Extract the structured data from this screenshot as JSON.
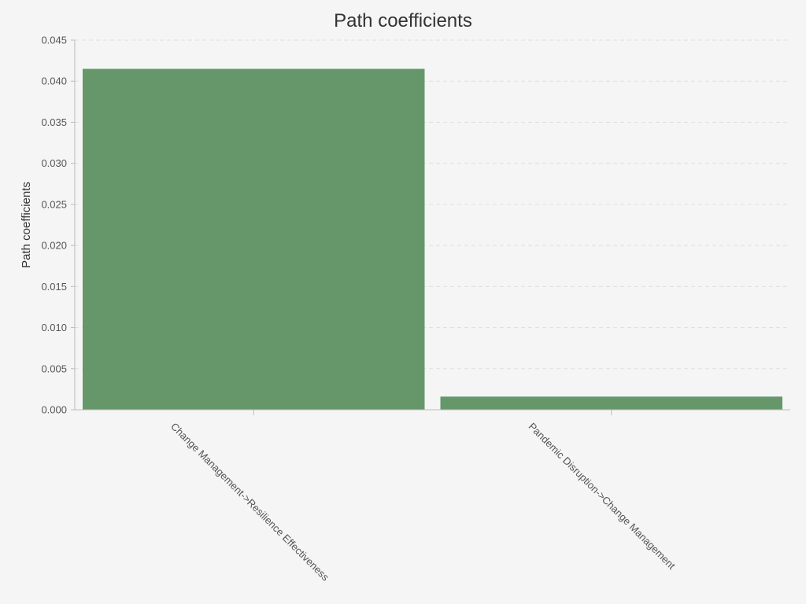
{
  "chart_data": {
    "type": "bar",
    "title": "Path coefficients",
    "xlabel": "",
    "ylabel": "Path coefficients",
    "categories": [
      "Change Management->Resilience Effectiveness",
      "Pandemic Disruption->Change Management"
    ],
    "values": [
      0.0415,
      0.0016
    ],
    "ylim": [
      0,
      0.045
    ],
    "yticks": [
      "0.000",
      "0.005",
      "0.010",
      "0.015",
      "0.020",
      "0.025",
      "0.030",
      "0.035",
      "0.040",
      "0.045"
    ],
    "grid": true,
    "legend": "none",
    "colors": {
      "bar": "#65976a",
      "bar_edge": "#5a8a5f",
      "grid": "#e0e0e0",
      "axis": "#bbbbbb",
      "background": "#f5f5f5"
    }
  }
}
